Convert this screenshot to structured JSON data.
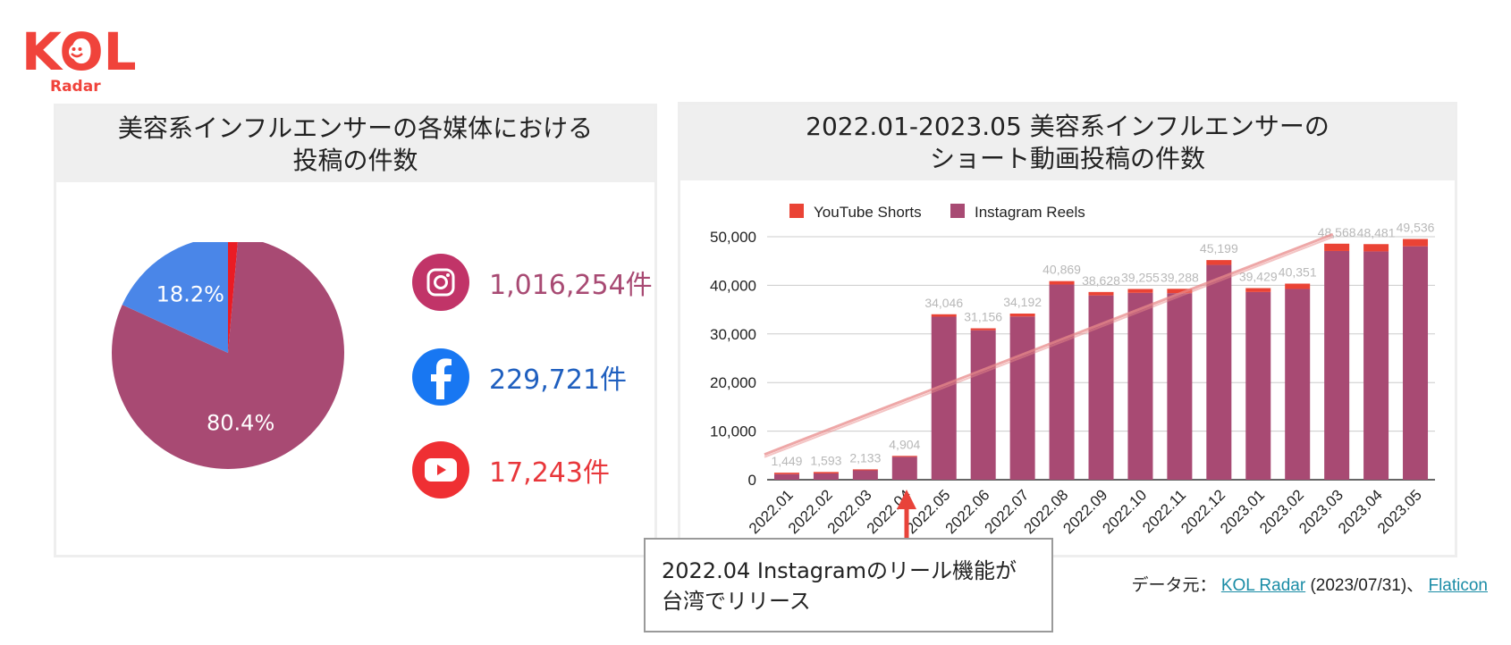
{
  "logo": {
    "text": "KOL",
    "subtext": "Radar"
  },
  "left_panel": {
    "title_line1": "美容系インフルエンサーの各媒体における",
    "title_line2": "投稿の件数",
    "stats": [
      {
        "icon": "instagram-icon",
        "value": "1,016,254件",
        "color": "#a84a73",
        "bg": "#c13468"
      },
      {
        "icon": "facebook-icon",
        "value": "229,721件",
        "color": "#1f5fbf",
        "bg": "#1877f2"
      },
      {
        "icon": "youtube-icon",
        "value": "17,243件",
        "color": "#e8373b",
        "bg": "#ef2f33"
      }
    ]
  },
  "right_panel": {
    "title_line1": "2022.01-2023.05 美容系インフルエンサーの",
    "title_line2": "ショート動画投稿の件数"
  },
  "callout": {
    "line1": "2022.04 Instagramのリール機能が",
    "line2": "台湾でリリース"
  },
  "source": {
    "prefix": "データ元：",
    "link1": "KOL Radar",
    "date": "(2023/07/31)、",
    "link2": "Flaticon"
  },
  "chart_data": [
    {
      "type": "pie",
      "slices": [
        {
          "label": "Instagram",
          "value": 80.4,
          "color": "#a84a73",
          "data_label": "80.4%"
        },
        {
          "label": "Facebook",
          "value": 18.2,
          "color": "#4a86e8",
          "data_label": "18.2%"
        },
        {
          "label": "YouTube",
          "value": 1.4,
          "color": "#ea1c24",
          "data_label": ""
        }
      ]
    },
    {
      "type": "bar",
      "stacked": true,
      "categories": [
        "2022.01",
        "2022.02",
        "2022.03",
        "2022.04",
        "2022.05",
        "2022.06",
        "2022.07",
        "2022.08",
        "2022.09",
        "2022.10",
        "2022.11",
        "2022.12",
        "2023.01",
        "2023.02",
        "2023.03",
        "2023.04",
        "2023.05"
      ],
      "series": [
        {
          "name": "Instagram Reels",
          "color": "#a84a73",
          "values": [
            1149,
            1293,
            1933,
            4704,
            33546,
            30756,
            33592,
            40169,
            37928,
            38455,
            38388,
            44199,
            38629,
            39251,
            47068,
            46981,
            48036
          ]
        },
        {
          "name": "YouTube Shorts",
          "color": "#ea4335",
          "values": [
            300,
            300,
            200,
            200,
            500,
            400,
            600,
            700,
            700,
            800,
            900,
            1000,
            800,
            1100,
            1500,
            1500,
            1500
          ]
        }
      ],
      "totals": [
        "1,449",
        "1,593",
        "2,133",
        "4,904",
        "34,046",
        "31,156",
        "34,192",
        "40,869",
        "38,628",
        "39,255",
        "39,288",
        "45,199",
        "39,429",
        "40,351",
        "48,568",
        "48,481",
        "49,536"
      ],
      "y_ticks": [
        "0",
        "10,000",
        "20,000",
        "30,000",
        "40,000",
        "50,000"
      ],
      "ylim": [
        0,
        50000
      ],
      "trendline": {
        "start": 5200,
        "end": 50500,
        "color": "#e98a8a"
      },
      "legend": "top-left",
      "grid": true
    }
  ]
}
